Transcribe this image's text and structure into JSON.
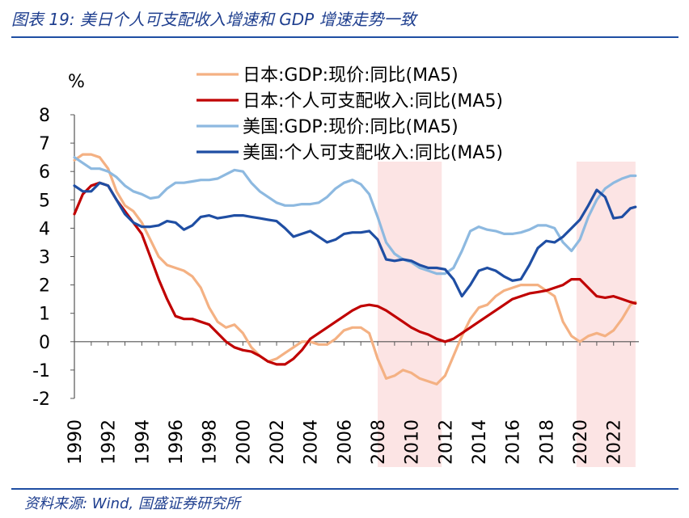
{
  "header": {
    "title": "图表 19:  美日个人可支配收入增速和 GDP 增速走势一致"
  },
  "footer": {
    "source": "资料来源:  Wind,  国盛证券研究所"
  },
  "chart_data": {
    "type": "line",
    "unit_label": "%",
    "ylim": [
      -2,
      8
    ],
    "xlim": [
      1990,
      2023.5
    ],
    "y_ticks": [
      "8",
      "7",
      "6",
      "5",
      "4",
      "3",
      "2",
      "1",
      "0",
      "-1",
      "-2"
    ],
    "x_ticks": [
      "1990",
      "1992",
      "1994",
      "1996",
      "1998",
      "2000",
      "2002",
      "2004",
      "2006",
      "2008",
      "2010",
      "2012",
      "2014",
      "2016",
      "2018",
      "2020",
      "2022"
    ],
    "legend_position": "top",
    "shaded_periods": [
      [
        2008,
        2011.8
      ],
      [
        2019.8,
        2023.3
      ]
    ],
    "series": [
      {
        "name": "日本:GDP:现价:同比(MA5)",
        "color": "#f4b183",
        "x": [
          1990,
          1990.5,
          1991,
          1991.5,
          1992,
          1992.5,
          1993,
          1993.5,
          1994,
          1994.5,
          1995,
          1995.5,
          1996,
          1996.5,
          1997,
          1997.5,
          1998,
          1998.5,
          1999,
          1999.5,
          2000,
          2000.5,
          2001,
          2001.5,
          2002,
          2002.5,
          2003,
          2003.5,
          2004,
          2004.5,
          2005,
          2005.5,
          2006,
          2006.5,
          2007,
          2007.5,
          2008,
          2008.5,
          2009,
          2009.5,
          2010,
          2010.5,
          2011,
          2011.5,
          2012,
          2012.5,
          2013,
          2013.5,
          2014,
          2014.5,
          2015,
          2015.5,
          2016,
          2016.5,
          2017,
          2017.5,
          2018,
          2018.5,
          2019,
          2019.5,
          2020,
          2020.5,
          2021,
          2021.5,
          2022,
          2022.5,
          2023,
          2023.3
        ],
        "y": [
          6.4,
          6.6,
          6.6,
          6.5,
          6.1,
          5.3,
          4.8,
          4.6,
          4.2,
          3.6,
          3.0,
          2.7,
          2.6,
          2.5,
          2.3,
          1.9,
          1.2,
          0.7,
          0.5,
          0.6,
          0.3,
          -0.2,
          -0.5,
          -0.7,
          -0.6,
          -0.4,
          -0.2,
          0.0,
          0.0,
          -0.1,
          -0.1,
          0.1,
          0.4,
          0.5,
          0.5,
          0.3,
          -0.6,
          -1.3,
          -1.2,
          -1.0,
          -1.1,
          -1.3,
          -1.4,
          -1.5,
          -1.2,
          -0.5,
          0.2,
          0.8,
          1.2,
          1.3,
          1.6,
          1.8,
          1.9,
          2.0,
          2.0,
          2.0,
          1.8,
          1.6,
          0.7,
          0.2,
          0.0,
          0.2,
          0.3,
          0.2,
          0.4,
          0.8,
          1.3,
          1.4
        ]
      },
      {
        "name": "日本:个人可支配收入:同比(MA5)",
        "color": "#c00000",
        "x": [
          1990,
          1990.5,
          1991,
          1991.5,
          1992,
          1992.5,
          1993,
          1993.5,
          1994,
          1994.5,
          1995,
          1995.5,
          1996,
          1996.5,
          1997,
          1997.5,
          1998,
          1998.5,
          1999,
          1999.5,
          2000,
          2000.5,
          2001,
          2001.5,
          2002,
          2002.5,
          2003,
          2003.5,
          2004,
          2004.5,
          2005,
          2005.5,
          2006,
          2006.5,
          2007,
          2007.5,
          2008,
          2008.5,
          2009,
          2009.5,
          2010,
          2010.5,
          2011,
          2011.5,
          2012,
          2012.5,
          2013,
          2013.5,
          2014,
          2014.5,
          2015,
          2015.5,
          2016,
          2016.5,
          2017,
          2017.5,
          2018,
          2018.5,
          2019,
          2019.5,
          2020,
          2020.5,
          2021,
          2021.5,
          2022,
          2022.5,
          2023,
          2023.3
        ],
        "y": [
          4.5,
          5.2,
          5.5,
          5.6,
          5.5,
          5.0,
          4.6,
          4.2,
          3.8,
          3.0,
          2.2,
          1.5,
          0.9,
          0.8,
          0.8,
          0.7,
          0.6,
          0.3,
          0.0,
          -0.2,
          -0.3,
          -0.35,
          -0.5,
          -0.7,
          -0.8,
          -0.8,
          -0.6,
          -0.3,
          0.1,
          0.3,
          0.5,
          0.7,
          0.9,
          1.1,
          1.25,
          1.3,
          1.25,
          1.1,
          0.9,
          0.7,
          0.5,
          0.35,
          0.25,
          0.1,
          0.0,
          0.1,
          0.3,
          0.5,
          0.7,
          0.9,
          1.1,
          1.3,
          1.5,
          1.6,
          1.7,
          1.75,
          1.8,
          1.9,
          2.0,
          2.2,
          2.2,
          1.9,
          1.6,
          1.55,
          1.6,
          1.5,
          1.4,
          1.35
        ]
      },
      {
        "name": "美国:GDP:现价:同比(MA5)",
        "color": "#8db9e0",
        "x": [
          1990,
          1990.5,
          1991,
          1991.5,
          1992,
          1992.5,
          1993,
          1993.5,
          1994,
          1994.5,
          1995,
          1995.5,
          1996,
          1996.5,
          1997,
          1997.5,
          1998,
          1998.5,
          1999,
          1999.5,
          2000,
          2000.5,
          2001,
          2001.5,
          2002,
          2002.5,
          2003,
          2003.5,
          2004,
          2004.5,
          2005,
          2005.5,
          2006,
          2006.5,
          2007,
          2007.5,
          2008,
          2008.5,
          2009,
          2009.5,
          2010,
          2010.5,
          2011,
          2011.5,
          2012,
          2012.5,
          2013,
          2013.5,
          2014,
          2014.5,
          2015,
          2015.5,
          2016,
          2016.5,
          2017,
          2017.5,
          2018,
          2018.5,
          2019,
          2019.5,
          2020,
          2020.5,
          2021,
          2021.5,
          2022,
          2022.5,
          2023,
          2023.3
        ],
        "y": [
          6.5,
          6.3,
          6.1,
          6.1,
          6.0,
          5.8,
          5.5,
          5.3,
          5.2,
          5.05,
          5.1,
          5.4,
          5.6,
          5.6,
          5.65,
          5.7,
          5.7,
          5.75,
          5.9,
          6.05,
          6.0,
          5.6,
          5.3,
          5.1,
          4.9,
          4.8,
          4.8,
          4.85,
          4.85,
          4.9,
          5.1,
          5.4,
          5.6,
          5.7,
          5.55,
          5.2,
          4.4,
          3.5,
          3.1,
          2.9,
          2.8,
          2.6,
          2.5,
          2.4,
          2.4,
          2.6,
          3.2,
          3.9,
          4.05,
          3.95,
          3.9,
          3.8,
          3.8,
          3.85,
          3.95,
          4.1,
          4.1,
          4.0,
          3.5,
          3.2,
          3.6,
          4.4,
          5.0,
          5.4,
          5.6,
          5.75,
          5.85,
          5.85
        ]
      },
      {
        "name": "美国:个人可支配收入:同比(MA5)",
        "color": "#1f4ea3",
        "x": [
          1990,
          1990.5,
          1991,
          1991.5,
          1992,
          1992.5,
          1993,
          1993.5,
          1994,
          1994.5,
          1995,
          1995.5,
          1996,
          1996.5,
          1997,
          1997.5,
          1998,
          1998.5,
          1999,
          1999.5,
          2000,
          2000.5,
          2001,
          2001.5,
          2002,
          2002.5,
          2003,
          2003.5,
          2004,
          2004.5,
          2005,
          2005.5,
          2006,
          2006.5,
          2007,
          2007.5,
          2008,
          2008.5,
          2009,
          2009.5,
          2010,
          2010.5,
          2011,
          2011.5,
          2012,
          2012.5,
          2013,
          2013.5,
          2014,
          2014.5,
          2015,
          2015.5,
          2016,
          2016.5,
          2017,
          2017.5,
          2018,
          2018.5,
          2019,
          2019.5,
          2020,
          2020.5,
          2021,
          2021.5,
          2022,
          2022.5,
          2023,
          2023.3
        ],
        "y": [
          5.5,
          5.3,
          5.3,
          5.6,
          5.5,
          5.0,
          4.5,
          4.2,
          4.05,
          4.05,
          4.1,
          4.25,
          4.2,
          3.95,
          4.1,
          4.4,
          4.45,
          4.35,
          4.4,
          4.45,
          4.45,
          4.4,
          4.35,
          4.3,
          4.25,
          4.0,
          3.7,
          3.8,
          3.9,
          3.7,
          3.5,
          3.6,
          3.8,
          3.85,
          3.85,
          3.9,
          3.6,
          2.9,
          2.85,
          2.9,
          2.85,
          2.7,
          2.6,
          2.6,
          2.55,
          2.2,
          1.6,
          2.0,
          2.5,
          2.6,
          2.5,
          2.3,
          2.15,
          2.2,
          2.7,
          3.3,
          3.55,
          3.5,
          3.7,
          4.0,
          4.3,
          4.8,
          5.35,
          5.1,
          4.35,
          4.4,
          4.7,
          4.75
        ]
      }
    ]
  }
}
